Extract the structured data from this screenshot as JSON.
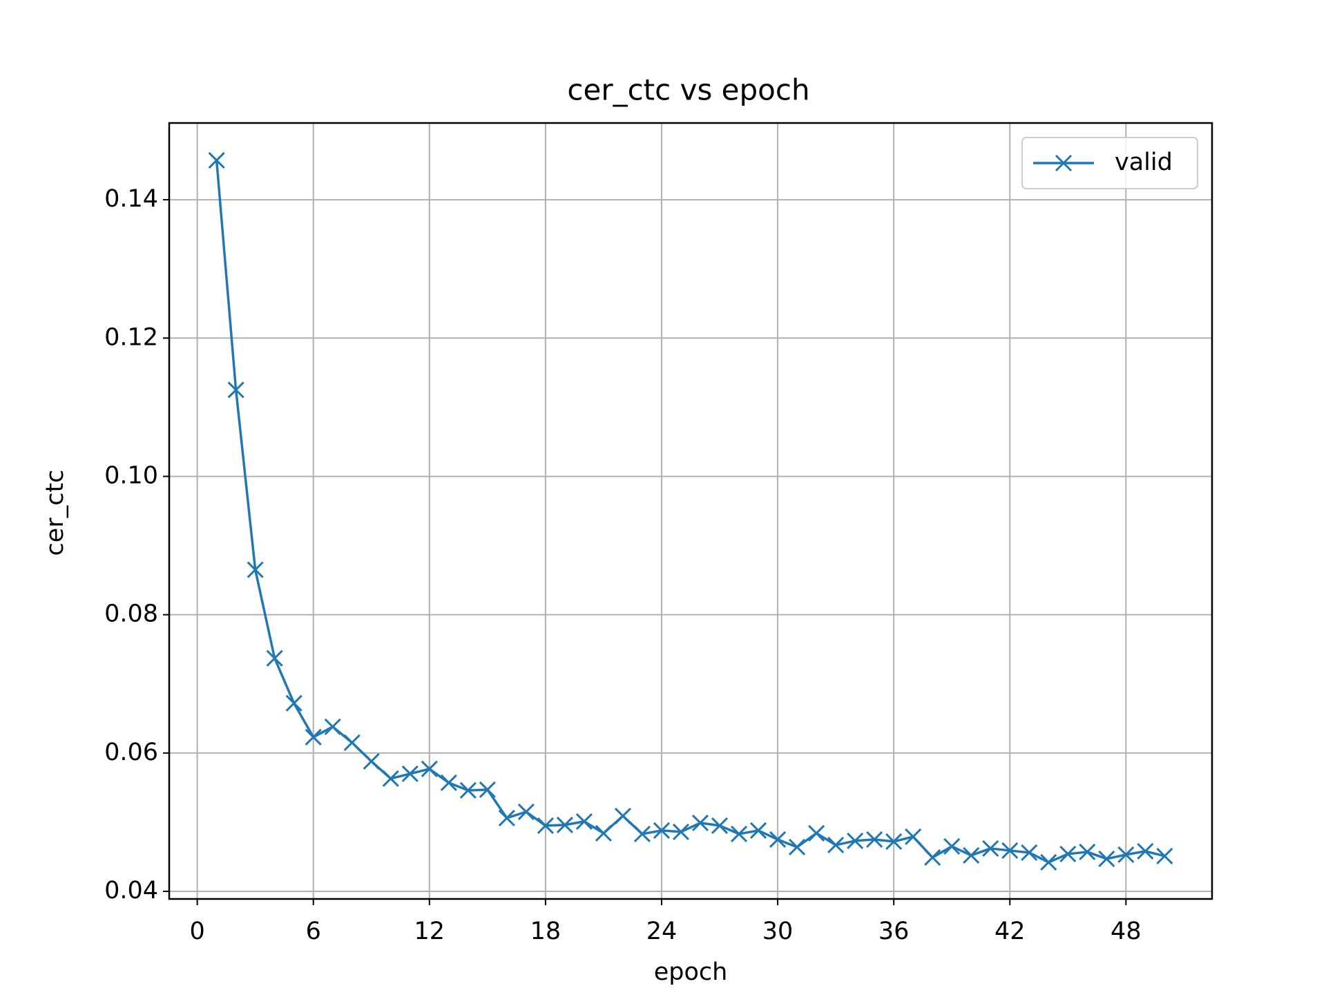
{
  "chart_data": {
    "type": "line",
    "title": "cer_ctc vs epoch",
    "xlabel": "epoch",
    "ylabel": "cer_ctc",
    "x": [
      1,
      2,
      3,
      4,
      5,
      6,
      7,
      8,
      9,
      10,
      11,
      12,
      13,
      14,
      15,
      16,
      17,
      18,
      19,
      20,
      21,
      22,
      23,
      24,
      25,
      26,
      27,
      28,
      29,
      30,
      31,
      32,
      33,
      34,
      35,
      36,
      37,
      38,
      39,
      40,
      41,
      42,
      43,
      44,
      45,
      46,
      47,
      48,
      49,
      50
    ],
    "series": [
      {
        "name": "valid",
        "color": "#1f77b4",
        "marker": "x",
        "values": [
          0.1457,
          0.1125,
          0.0865,
          0.0737,
          0.0672,
          0.0623,
          0.0638,
          0.0615,
          0.0588,
          0.0563,
          0.057,
          0.0577,
          0.0557,
          0.0546,
          0.0547,
          0.0506,
          0.0515,
          0.0495,
          0.0496,
          0.0501,
          0.0484,
          0.0509,
          0.0483,
          0.0488,
          0.0486,
          0.0499,
          0.0495,
          0.0483,
          0.0488,
          0.0475,
          0.0464,
          0.0484,
          0.0467,
          0.0473,
          0.0475,
          0.0472,
          0.0479,
          0.0449,
          0.0465,
          0.0452,
          0.0462,
          0.0459,
          0.0456,
          0.0442,
          0.0454,
          0.0457,
          0.0447,
          0.0453,
          0.0458,
          0.0451
        ]
      }
    ],
    "xlim": [
      -1.45,
      52.45
    ],
    "xticks": [
      0,
      6,
      12,
      18,
      24,
      30,
      36,
      42,
      48
    ],
    "ylim": [
      0.0389,
      0.1511
    ],
    "yticks": [
      0.04,
      0.06,
      0.08,
      {
        "value": 0.1,
        "label": "0.10"
      },
      0.12,
      0.14
    ],
    "grid": true,
    "legend": "upper right"
  }
}
